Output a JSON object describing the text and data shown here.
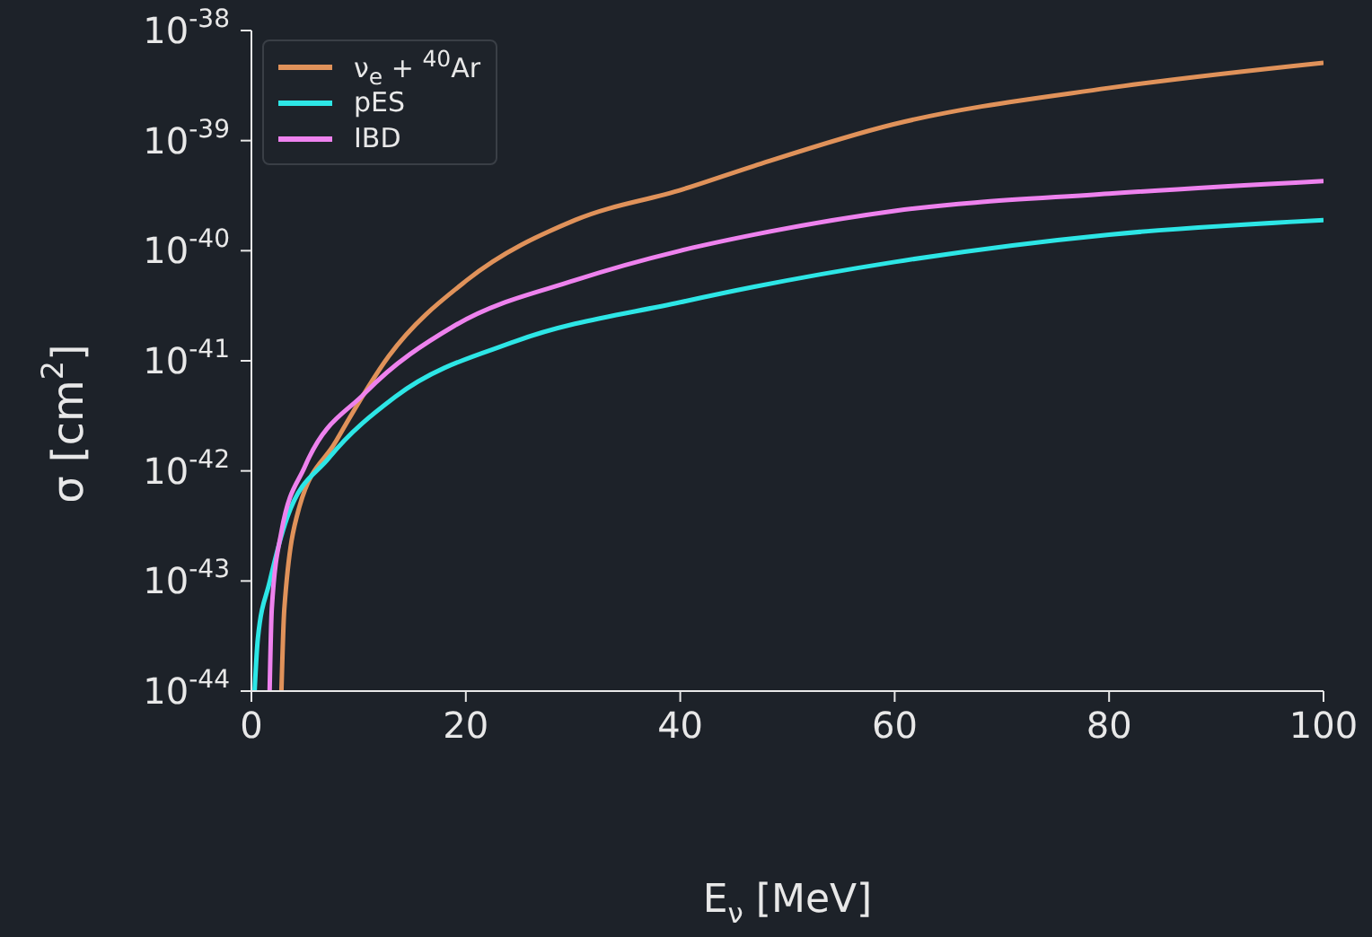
{
  "chart_data": {
    "type": "line",
    "xlabel": "E$_{ν}$ [MeV]",
    "ylabel": "σ [cm$^{2}$]",
    "log": "y",
    "legend": "top left",
    "marker": "none",
    "line_style": "solid",
    "xlim": [
      0,
      100
    ],
    "xticks": [
      0,
      20,
      40,
      60,
      80,
      100
    ],
    "ylim": [
      1e-44,
      1e-38
    ],
    "yticks": [
      {
        "value": 1e-44,
        "label": "10$^{-44}$"
      },
      {
        "value": 1e-43,
        "label": "10$^{-43}$"
      },
      {
        "value": 1e-42,
        "label": "10$^{-42}$"
      },
      {
        "value": 1e-41,
        "label": "10$^{-41}$"
      },
      {
        "value": 1e-40,
        "label": "10$^{-40}$"
      },
      {
        "value": 1e-39,
        "label": "10$^{-39}$"
      },
      {
        "value": 1e-38,
        "label": "10$^{-38}$"
      }
    ],
    "series": [
      {
        "name": "ν$_{e}$ + $^{40}$Ar",
        "color": "#e0925a",
        "x": [
          2.8,
          3.07,
          4.47,
          7.8,
          12.8,
          20.1,
          30.2,
          40.2,
          46.9,
          59.8,
          79.9,
          100
        ],
        "values": [
          1e-44,
          5.6e-44,
          4.7e-43,
          1.8e-42,
          1.1e-41,
          5.4e-41,
          1.9e-40,
          3.6e-40,
          5.9e-40,
          1.4e-39,
          3e-39,
          5.1e-39
        ]
      },
      {
        "name": "pES",
        "color": "#2de6e6",
        "x": [
          0.3,
          0.6,
          1.7,
          3.35,
          7.2,
          13.4,
          24.6,
          40,
          46.9,
          60,
          80,
          100
        ],
        "values": [
          1e-44,
          3e-44,
          9.8e-44,
          3.8e-43,
          1.3e-42,
          4.7e-42,
          1.5e-41,
          3.4e-41,
          4.7e-41,
          7.9e-41,
          1.4e-40,
          1.9e-40
        ]
      },
      {
        "name": "IBD",
        "color": "#ee82ee",
        "x": [
          1.7,
          1.9,
          2.8,
          5.0,
          10.6,
          19.0,
          30.2,
          40,
          46.9,
          60,
          80,
          100
        ],
        "values": [
          1e-44,
          5.6e-44,
          2.8e-43,
          1.1e-42,
          5.1e-42,
          2.1e-41,
          5.4e-41,
          1e-40,
          1.4e-40,
          2.3e-40,
          3.3e-40,
          4.3e-40
        ]
      }
    ]
  }
}
